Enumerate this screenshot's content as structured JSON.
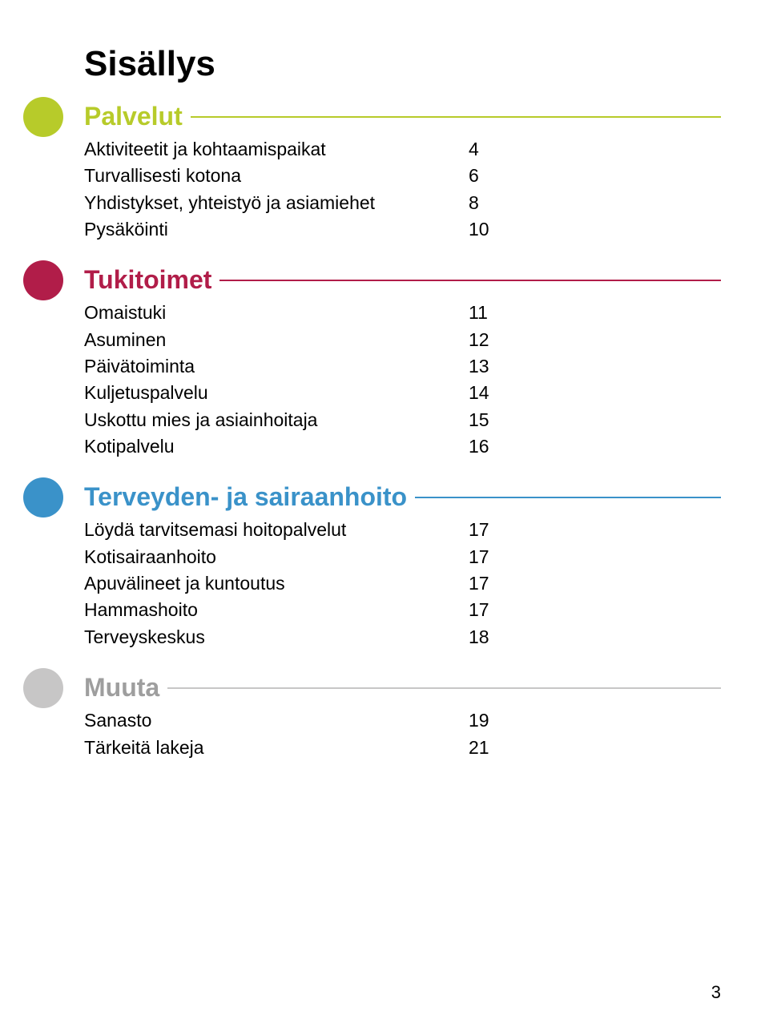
{
  "title": "Sisällys",
  "sections": [
    {
      "heading": "Palvelut",
      "bullet_color": "#b7cb2a",
      "title_color": "#b7cb2a",
      "line_color": "#b7cb2a",
      "items": [
        {
          "label": "Aktiviteetit ja kohtaamispaikat",
          "page": "4"
        },
        {
          "label": "Turvallisesti kotona",
          "page": "6"
        },
        {
          "label": "Yhdistykset, yhteistyö ja asiamiehet",
          "page": "8"
        },
        {
          "label": "Pysäköinti",
          "page": "10"
        }
      ]
    },
    {
      "heading": "Tukitoimet",
      "bullet_color": "#b11d49",
      "title_color": "#b11d49",
      "line_color": "#b11d49",
      "items": [
        {
          "label": "Omaistuki",
          "page": "11"
        },
        {
          "label": "Asuminen",
          "page": "12"
        },
        {
          "label": "Päivätoiminta",
          "page": "13"
        },
        {
          "label": "Kuljetuspalvelu",
          "page": "14"
        },
        {
          "label": "Uskottu mies ja asiainhoitaja",
          "page": "15"
        },
        {
          "label": "Kotipalvelu",
          "page": "16"
        }
      ]
    },
    {
      "heading": "Terveyden- ja sairaanhoito",
      "bullet_color": "#3a92c9",
      "title_color": "#3a92c9",
      "line_color": "#3a92c9",
      "items": [
        {
          "label": "Löydä tarvitsemasi hoitopalvelut",
          "page": "17"
        },
        {
          "label": "Kotisairaanhoito",
          "page": "17"
        },
        {
          "label": "Apuvälineet ja kuntoutus",
          "page": "17"
        },
        {
          "label": "Hammashoito",
          "page": "17"
        },
        {
          "label": "Terveyskeskus",
          "page": "18"
        }
      ]
    },
    {
      "heading": "Muuta",
      "bullet_color": "#c7c6c6",
      "title_color": "#9e9e9e",
      "line_color": "#c7c6c6",
      "items": [
        {
          "label": "Sanasto",
          "page": "19"
        },
        {
          "label": "Tärkeitä lakeja",
          "page": "21"
        }
      ]
    }
  ],
  "page_number": "3"
}
